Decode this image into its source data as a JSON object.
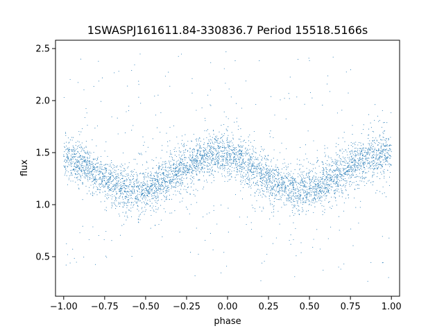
{
  "chart_data": {
    "type": "scatter",
    "title": "1SWASPJ161611.84-330836.7 Period 15518.5166s",
    "xlabel": "phase",
    "ylabel": "flux",
    "xlim": [
      -1.05,
      1.05
    ],
    "ylim": [
      0.12,
      2.58
    ],
    "xticks": [
      -1.0,
      -0.75,
      -0.5,
      -0.25,
      0.0,
      0.25,
      0.5,
      0.75,
      1.0
    ],
    "xtick_labels": [
      "−1.00",
      "−0.75",
      "−0.50",
      "−0.25",
      "0.00",
      "0.25",
      "0.50",
      "0.75",
      "1.00"
    ],
    "yticks": [
      0.5,
      1.0,
      1.5,
      2.0,
      2.5
    ],
    "ytick_labels": [
      "0.5",
      "1.0",
      "1.5",
      "2.0",
      "2.5"
    ],
    "grid": false,
    "point_color": "#1f77b4",
    "series": [
      {
        "phase_range": [
          -1.0,
          1.0
        ],
        "model": "sinusoid",
        "mean_flux": 1.31,
        "amplitude": 0.17,
        "period_in_phase": 1.0,
        "minimum_phase": [
          -0.56,
          0.44
        ],
        "maximum_phase": [
          -0.06,
          0.94
        ],
        "scatter_sigma": 0.1,
        "outlier_range": [
          0.25,
          2.5
        ],
        "points": [
          [
            -1.0,
            1.46
          ],
          [
            -0.95,
            1.44
          ],
          [
            -0.9,
            1.42
          ],
          [
            -0.85,
            1.38
          ],
          [
            -0.8,
            1.35
          ],
          [
            -0.75,
            1.3
          ],
          [
            -0.7,
            1.24
          ],
          [
            -0.65,
            1.18
          ],
          [
            -0.6,
            1.15
          ],
          [
            -0.56,
            1.13
          ],
          [
            -0.5,
            1.16
          ],
          [
            -0.45,
            1.21
          ],
          [
            -0.4,
            1.27
          ],
          [
            -0.35,
            1.33
          ],
          [
            -0.3,
            1.38
          ],
          [
            -0.25,
            1.42
          ],
          [
            -0.2,
            1.45
          ],
          [
            -0.15,
            1.47
          ],
          [
            -0.1,
            1.48
          ],
          [
            -0.06,
            1.48
          ],
          [
            0.0,
            1.46
          ],
          [
            0.05,
            1.44
          ],
          [
            0.1,
            1.42
          ],
          [
            0.15,
            1.38
          ],
          [
            0.2,
            1.35
          ],
          [
            0.25,
            1.3
          ],
          [
            0.3,
            1.24
          ],
          [
            0.35,
            1.18
          ],
          [
            0.4,
            1.15
          ],
          [
            0.44,
            1.13
          ],
          [
            0.5,
            1.16
          ],
          [
            0.55,
            1.21
          ],
          [
            0.6,
            1.27
          ],
          [
            0.65,
            1.33
          ],
          [
            0.7,
            1.38
          ],
          [
            0.75,
            1.42
          ],
          [
            0.8,
            1.45
          ],
          [
            0.85,
            1.47
          ],
          [
            0.9,
            1.48
          ],
          [
            0.94,
            1.48
          ],
          [
            1.0,
            1.46
          ]
        ]
      }
    ]
  }
}
